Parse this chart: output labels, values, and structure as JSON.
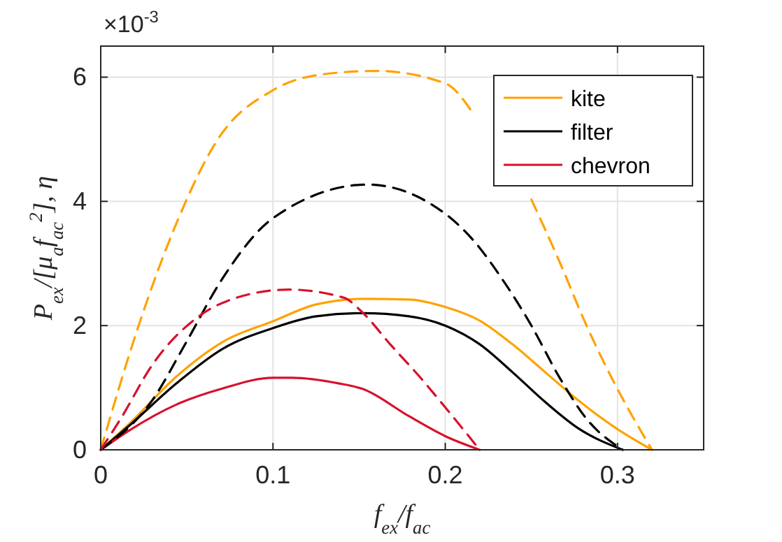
{
  "chart_data": {
    "type": "line",
    "xlabel": "f$_{ex}$/f$_{ac}$",
    "ylabel": "P$_{ex}$/[μ$_{a}$f$_{ac}$$^{2}$], η",
    "annotations": [
      "×10$^{-3}$"
    ],
    "xlim": [
      0,
      0.35
    ],
    "xticks": [
      0,
      0.1,
      0.2,
      0.3
    ],
    "ylim": [
      0,
      6.5
    ],
    "yticks": [
      0,
      2,
      4,
      6
    ],
    "grid": true,
    "legend": "top right",
    "marker": "none",
    "series": [
      {
        "name": "kite",
        "color": "#ffa200",
        "line_style": "solid",
        "x": [
          0,
          0.017,
          0.044,
          0.071,
          0.1,
          0.125,
          0.152,
          0.179,
          0.2,
          0.22,
          0.239,
          0.258,
          0.277,
          0.299,
          0.32
        ],
        "values": [
          0,
          0.43,
          1.18,
          1.74,
          2.07,
          2.34,
          2.43,
          2.42,
          2.3,
          2.08,
          1.7,
          1.25,
          0.8,
          0.35,
          0
        ]
      },
      {
        "name": "filter",
        "color": "#000000",
        "line_style": "solid",
        "x": [
          0,
          0.017,
          0.044,
          0.071,
          0.1,
          0.125,
          0.152,
          0.179,
          0.2,
          0.22,
          0.239,
          0.258,
          0.277,
          0.303
        ],
        "values": [
          0,
          0.4,
          1.07,
          1.63,
          1.96,
          2.15,
          2.2,
          2.15,
          2.0,
          1.7,
          1.25,
          0.77,
          0.35,
          0
        ]
      },
      {
        "name": "chevron",
        "color": "#d7112c",
        "line_style": "solid",
        "x": [
          0,
          0.017,
          0.044,
          0.071,
          0.1,
          0.111,
          0.138,
          0.152,
          0.179,
          0.2,
          0.22
        ],
        "values": [
          0,
          0.32,
          0.73,
          0.99,
          1.16,
          1.16,
          1.07,
          0.98,
          0.54,
          0.22,
          0
        ]
      },
      {
        "color": "#ffa200",
        "line_style": "dashed",
        "x": [
          0,
          0.022,
          0.044,
          0.068,
          0.1,
          0.13,
          0.16,
          0.2,
          0.217,
          0.233,
          0.25,
          0.266,
          0.282,
          0.299,
          0.32
        ],
        "values": [
          0,
          2.0,
          3.65,
          5.0,
          5.79,
          6.05,
          6.1,
          5.9,
          5.38,
          null,
          4.03,
          3.05,
          2.0,
          1.03,
          0
        ]
      },
      {
        "color": "#000000",
        "line_style": "dashed",
        "x": [
          0,
          0.03,
          0.049,
          0.0705,
          0.1,
          0.155,
          0.2,
          0.217,
          0.233,
          0.25,
          0.266,
          0.282,
          0.303
        ],
        "values": [
          0,
          0.8,
          1.7,
          2.75,
          3.73,
          4.27,
          3.8,
          3.35,
          2.75,
          2.0,
          1.18,
          0.5,
          0
        ]
      },
      {
        "color": "#d7112c",
        "line_style": "dashed",
        "x": [
          0,
          0.0116,
          0.03,
          0.057,
          0.079,
          0.109,
          0.141,
          0.152,
          0.168,
          0.185,
          0.201,
          0.22
        ],
        "values": [
          0,
          0.5,
          1.37,
          2.15,
          2.45,
          2.58,
          2.45,
          2.21,
          1.7,
          1.18,
          0.65,
          0
        ]
      }
    ]
  }
}
